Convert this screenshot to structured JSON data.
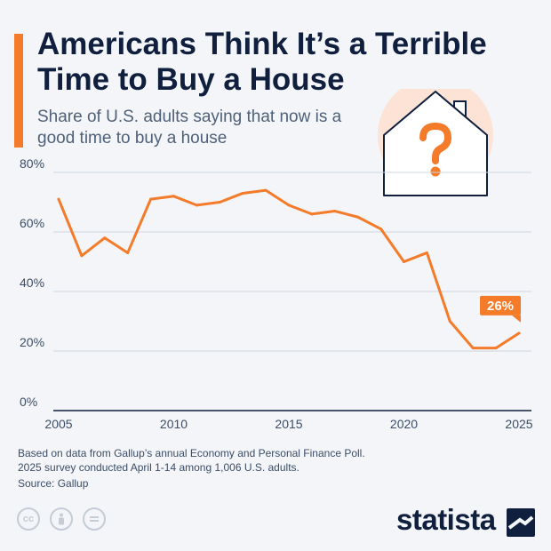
{
  "header": {
    "title": "Americans Think It’s a Terrible Time to Buy a House",
    "subtitle": "Share of U.S. adults saying that now is a good time to buy a house"
  },
  "chart_data": {
    "type": "line",
    "x": [
      2005,
      2006,
      2007,
      2008,
      2009,
      2010,
      2011,
      2012,
      2013,
      2014,
      2015,
      2016,
      2017,
      2018,
      2019,
      2020,
      2021,
      2022,
      2023,
      2024,
      2025
    ],
    "series": [
      {
        "values": [
          71,
          52,
          58,
          53,
          71,
          72,
          69,
          70,
          73,
          74,
          69,
          66,
          67,
          65,
          61,
          50,
          53,
          30,
          21,
          21,
          26
        ]
      }
    ],
    "x_ticks": [
      "2005",
      "2010",
      "2015",
      "2020",
      "2025"
    ],
    "y_ticks": [
      "0%",
      "20%",
      "40%",
      "60%",
      "80%"
    ],
    "ylim": [
      0,
      80
    ],
    "xlim": [
      2005,
      2025
    ],
    "grid": true,
    "annotation": {
      "x": 2025,
      "value": 26,
      "label": "26%"
    },
    "colors": {
      "line": "#f47b2a",
      "grid": "#cfd6df",
      "axis": "#0f1f3d"
    }
  },
  "footer": {
    "note_line1": "Based on data from Gallup’s annual Economy and Personal Finance Poll.",
    "note_line2": "2025 survey conducted April 1-14 among 1,006 U.S. adults.",
    "source": "Source: Gallup"
  },
  "brand": {
    "name": "statista"
  },
  "icons": [
    "house-question-icon",
    "creative-commons-icon",
    "attribution-icon",
    "no-derivatives-icon",
    "statista-logo-icon"
  ],
  "colors": {
    "accent": "#f47b2a",
    "title": "#0f1f3d",
    "background": "#f3f5f8"
  }
}
